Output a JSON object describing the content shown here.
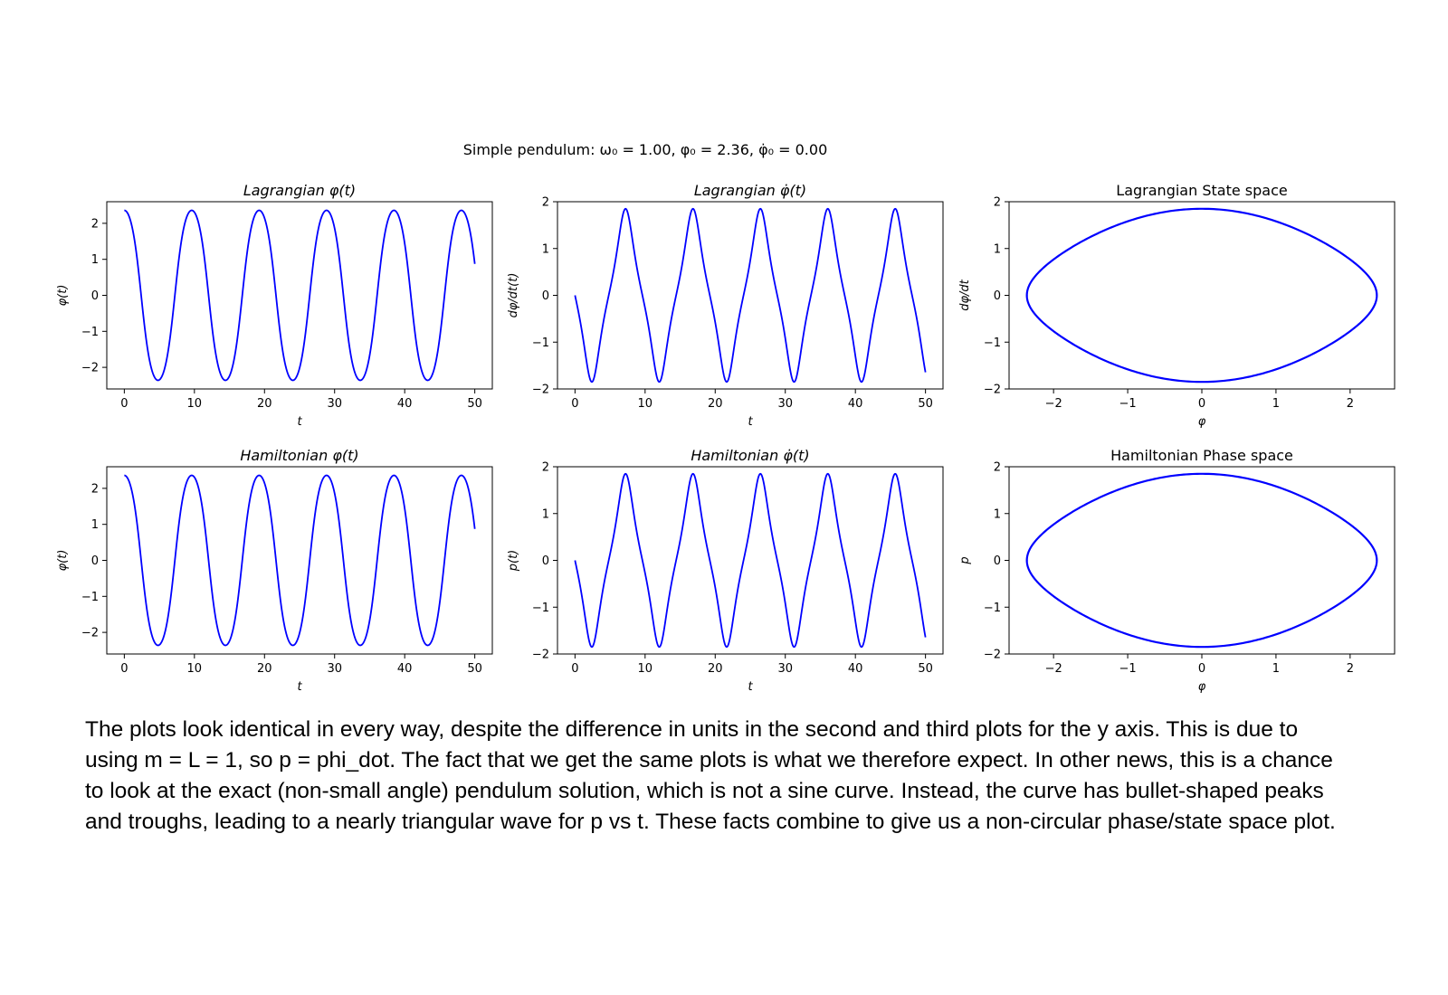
{
  "suptitle": "Simple pendulum:   ω₀ = 1.00,   φ₀ = 2.36,  φ̇₀ = 0.00",
  "params": {
    "omega0": 1.0,
    "phi0": 2.36,
    "phidot0": 0.0
  },
  "line_color": "#0000ff",
  "caption_lines": [
    " The plots look identical in every way, despite the difference in units in the second and third plots for the y axis. This is due to",
    "using m = L = 1, so p = phi_dot. The fact that we get the same plots is what we therefore expect. In other news, this is a chance",
    "to look at the exact (non-small angle) pendulum solution, which is not a sine curve. Instead, the curve has bullet-shaped peaks",
    "and troughs, leading to a nearly triangular wave for p vs t. These facts combine to give us a non-circular phase/state space plot."
  ],
  "chart_data": [
    {
      "id": "lag-phi",
      "type": "line",
      "title": "Lagrangian φ(t)",
      "xlabel": "t",
      "ylabel": "φ(t)",
      "xlim": [
        -2.5,
        52.5
      ],
      "ylim": [
        -2.6,
        2.6
      ],
      "xticks": [
        0,
        10,
        20,
        30,
        40,
        50
      ],
      "xticklabels": [
        "0",
        "10",
        "20",
        "30",
        "40",
        "50"
      ],
      "yticks": [
        -2,
        -1,
        0,
        1,
        2
      ],
      "yticklabels": [
        "−2",
        "−1",
        "0",
        "1",
        "2"
      ],
      "series": [
        {
          "quantity": "phi",
          "t_range": [
            0,
            50
          ],
          "start_value": 2.36,
          "end_value": 0.72,
          "period": 9.65,
          "min": -2.36,
          "max": 2.36
        }
      ]
    },
    {
      "id": "lag-phidot",
      "type": "line",
      "title": "Lagrangian φ̇(t)",
      "xlabel": "t",
      "ylabel": "dφ/dt(t)",
      "xlim": [
        -2.5,
        52.5
      ],
      "ylim": [
        -2.0,
        2.0
      ],
      "xticks": [
        0,
        10,
        20,
        30,
        40,
        50
      ],
      "xticklabels": [
        "0",
        "10",
        "20",
        "30",
        "40",
        "50"
      ],
      "yticks": [
        -2,
        -1,
        0,
        1,
        2
      ],
      "yticklabels": [
        "−2",
        "−1",
        "0",
        "1",
        "2"
      ],
      "series": [
        {
          "quantity": "phidot",
          "t_range": [
            0,
            50
          ],
          "start_value": 0.0,
          "end_value": -1.7,
          "period": 9.65,
          "min": -1.85,
          "max": 1.85
        }
      ]
    },
    {
      "id": "lag-state",
      "type": "line",
      "title": "Lagrangian State space",
      "xlabel": "φ",
      "ylabel": "dφ/dt",
      "xlim": [
        -2.6,
        2.6
      ],
      "ylim": [
        -2.0,
        2.0
      ],
      "xticks": [
        -2,
        -1,
        0,
        1,
        2
      ],
      "xticklabels": [
        "−2",
        "−1",
        "0",
        "1",
        "2"
      ],
      "yticks": [
        -2,
        -1,
        0,
        1,
        2
      ],
      "yticklabels": [
        "−2",
        "−1",
        "0",
        "1",
        "2"
      ],
      "series": [
        {
          "quantity": "phase",
          "phi_extent": [
            -2.36,
            2.36
          ],
          "phidot_extent": [
            -1.85,
            1.85
          ]
        }
      ]
    },
    {
      "id": "ham-phi",
      "type": "line",
      "title": "Hamiltonian φ(t)",
      "xlabel": "t",
      "ylabel": "φ(t)",
      "xlim": [
        -2.5,
        52.5
      ],
      "ylim": [
        -2.6,
        2.6
      ],
      "xticks": [
        0,
        10,
        20,
        30,
        40,
        50
      ],
      "xticklabels": [
        "0",
        "10",
        "20",
        "30",
        "40",
        "50"
      ],
      "yticks": [
        -2,
        -1,
        0,
        1,
        2
      ],
      "yticklabels": [
        "−2",
        "−1",
        "0",
        "1",
        "2"
      ],
      "series": [
        {
          "quantity": "phi",
          "t_range": [
            0,
            50
          ],
          "start_value": 2.36,
          "end_value": 0.72,
          "period": 9.65,
          "min": -2.36,
          "max": 2.36
        }
      ]
    },
    {
      "id": "ham-phidot",
      "type": "line",
      "title": "Hamiltonian φ̇(t)",
      "xlabel": "t",
      "ylabel": "p(t)",
      "xlim": [
        -2.5,
        52.5
      ],
      "ylim": [
        -2.0,
        2.0
      ],
      "xticks": [
        0,
        10,
        20,
        30,
        40,
        50
      ],
      "xticklabels": [
        "0",
        "10",
        "20",
        "30",
        "40",
        "50"
      ],
      "yticks": [
        -2,
        -1,
        0,
        1,
        2
      ],
      "yticklabels": [
        "−2",
        "−1",
        "0",
        "1",
        "2"
      ],
      "series": [
        {
          "quantity": "phidot",
          "t_range": [
            0,
            50
          ],
          "start_value": 0.0,
          "end_value": -1.7,
          "period": 9.65,
          "min": -1.85,
          "max": 1.85
        }
      ]
    },
    {
      "id": "ham-phase",
      "type": "line",
      "title": "Hamiltonian Phase space",
      "xlabel": "φ",
      "ylabel": "p",
      "xlim": [
        -2.6,
        2.6
      ],
      "ylim": [
        -2.0,
        2.0
      ],
      "xticks": [
        -2,
        -1,
        0,
        1,
        2
      ],
      "xticklabels": [
        "−2",
        "−1",
        "0",
        "1",
        "2"
      ],
      "yticks": [
        -2,
        -1,
        0,
        1,
        2
      ],
      "yticklabels": [
        "−2",
        "−1",
        "0",
        "1",
        "2"
      ],
      "series": [
        {
          "quantity": "phase",
          "phi_extent": [
            -2.36,
            2.36
          ],
          "phidot_extent": [
            -1.85,
            1.85
          ]
        }
      ]
    }
  ]
}
